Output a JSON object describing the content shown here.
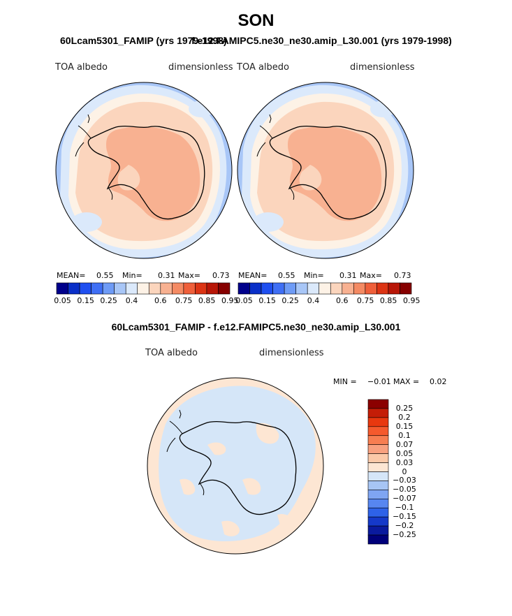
{
  "title": "SON",
  "top_left_caption": "60Lcam5301_FAMIP (yrs 1979-1998)",
  "top_right_caption": "f.e12.FAMIPC5.ne30_ne30.amip_L30.001 (yrs 1979-1998)",
  "diff_caption": "60Lcam5301_FAMIP - f.e12.FAMIPC5.ne30_ne30.amip_L30.001",
  "panels": {
    "left": {
      "variable": "TOA albedo",
      "units": "dimensionless",
      "mean_label": "MEAN=",
      "mean": "0.55",
      "min_label": "Min=",
      "min": "0.31",
      "max_label": "Max=",
      "max": "0.73"
    },
    "right": {
      "variable": "TOA albedo",
      "units": "dimensionless",
      "mean_label": "MEAN=",
      "mean": "0.55",
      "min_label": "Min=",
      "min": "0.31",
      "max_label": "Max=",
      "max": "0.73"
    },
    "diff": {
      "variable": "TOA albedo",
      "units": "dimensionless",
      "min_label": "MIN =",
      "min": "−0.01",
      "max_label": "MAX =",
      "max": "0.02"
    }
  },
  "colorbar": {
    "ticks": [
      "0.05",
      "0.15",
      "0.25",
      "0.4",
      "0.6",
      "0.75",
      "0.85",
      "0.95"
    ],
    "colors": [
      "#00008b",
      "#0a2fc8",
      "#1f4ff0",
      "#3f6ff5",
      "#6e9bf6",
      "#a8c6f7",
      "#dbe9fb",
      "#fdf2e6",
      "#fbd5bd",
      "#f8b191",
      "#f48a63",
      "#ef5f3a",
      "#dc3414",
      "#b81607",
      "#860000"
    ]
  },
  "diff_colorbar": {
    "labels": [
      "0.25",
      "0.2",
      "0.15",
      "0.1",
      "0.07",
      "0.05",
      "0.03",
      "0",
      "−0.03",
      "−0.05",
      "−0.07",
      "−0.1",
      "−0.15",
      "−0.2",
      "−0.25"
    ],
    "colors": [
      "#8b0000",
      "#c41d07",
      "#e8380f",
      "#f55a2d",
      "#f77e51",
      "#f8a17f",
      "#fbc9a8",
      "#fde6d3",
      "#d5e6f8",
      "#a7c5f4",
      "#7fa5f2",
      "#5786f0",
      "#2e62e8",
      "#1539c9",
      "#0a1a9e",
      "#00007a"
    ]
  }
}
